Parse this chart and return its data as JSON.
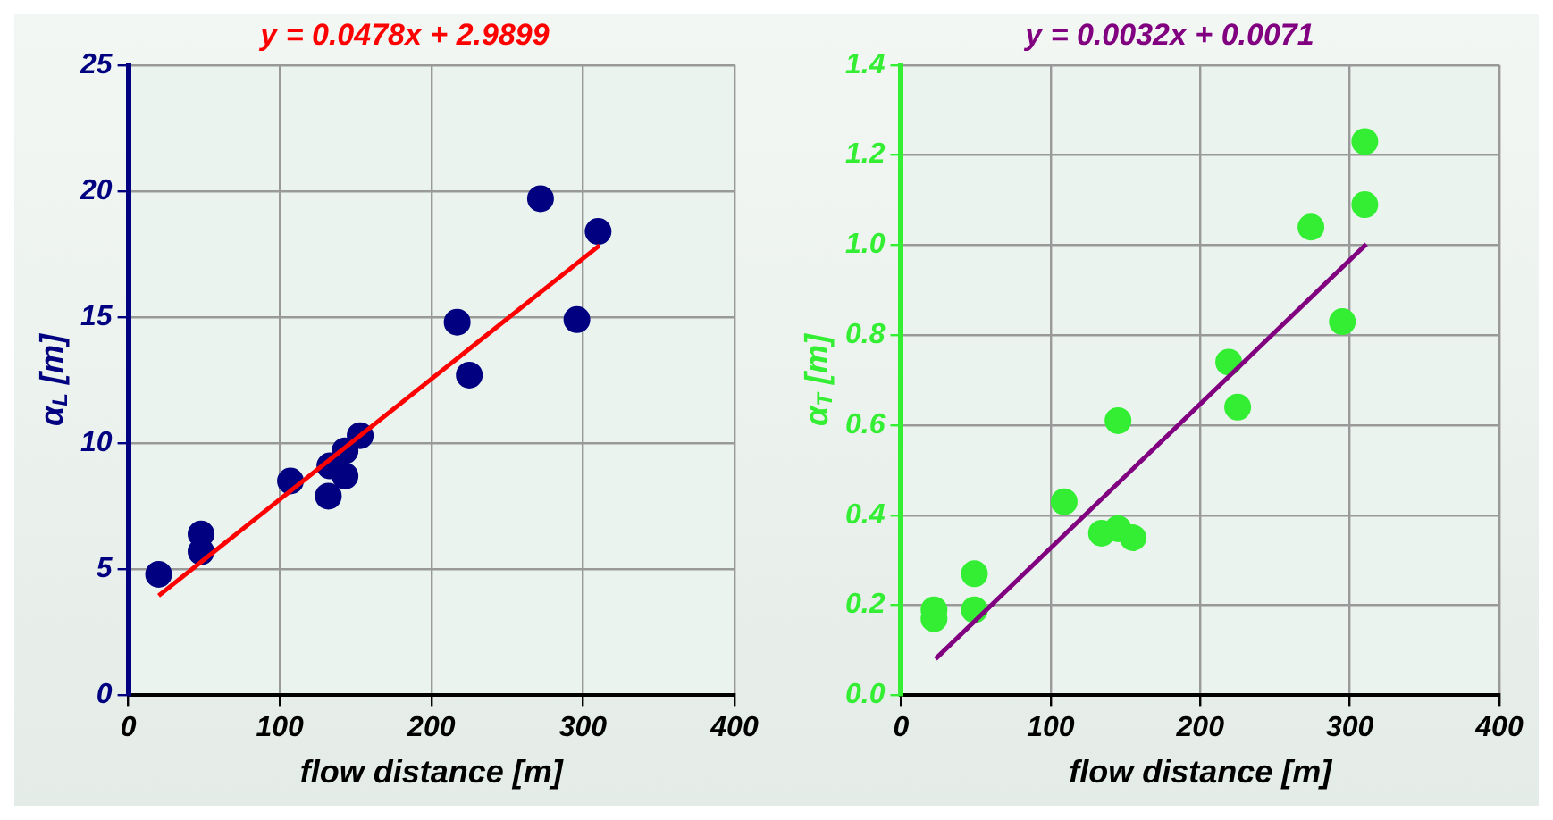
{
  "chart_data": [
    {
      "type": "scatter",
      "title": "y = 0.0478x + 2.9899",
      "xlabel": "flow distance [m]",
      "ylabel": "α$_{L}$ [m]",
      "xlim": [
        0,
        400
      ],
      "xticks": [
        0,
        100,
        200,
        300,
        400
      ],
      "ylim": [
        0,
        25
      ],
      "yticks": [
        0,
        5,
        10,
        15,
        20,
        25
      ],
      "grid": true,
      "legend": false,
      "marker": "circle",
      "series": [
        {
          "color": "#000080",
          "x": [
            20,
            48,
            48,
            107,
            132,
            133,
            143,
            143,
            153,
            217,
            225,
            272,
            296,
            310
          ],
          "values": [
            4.8,
            6.4,
            5.7,
            8.5,
            7.9,
            9.1,
            9.7,
            8.7,
            10.3,
            14.8,
            12.7,
            19.7,
            14.9,
            18.4
          ]
        },
        {
          "type": "line",
          "color": "#ff0000",
          "marker": "none",
          "x": [
            20,
            311
          ],
          "values": [
            3.95,
            17.85
          ]
        }
      ]
    },
    {
      "type": "scatter",
      "title": "y = 0.0032x + 0.0071",
      "xlabel": "flow distance [m]",
      "ylabel": "α$_{T}$ [m]",
      "xlim": [
        0,
        400
      ],
      "xticks": [
        0,
        100,
        200,
        300,
        400
      ],
      "ylim": [
        0,
        1.4
      ],
      "yticks": [
        {
          "value": 0,
          "label": "0.0"
        },
        0.2,
        0.4,
        0.6,
        0.8,
        {
          "value": 1,
          "label": "1.0"
        },
        1.2,
        1.4
      ],
      "grid": true,
      "legend": false,
      "marker": "circle",
      "series": [
        {
          "color": "#33ee33",
          "x": [
            22,
            22,
            49,
            49,
            109,
            134,
            145,
            155,
            145,
            219,
            225,
            274,
            295,
            310,
            310
          ],
          "values": [
            0.19,
            0.17,
            0.27,
            0.19,
            0.43,
            0.36,
            0.37,
            0.35,
            0.61,
            0.74,
            0.64,
            1.04,
            0.83,
            1.09,
            1.23
          ]
        },
        {
          "type": "line",
          "color": "#800080",
          "marker": "none",
          "x": [
            23,
            311
          ],
          "values": [
            0.081,
            1.002
          ]
        }
      ]
    }
  ]
}
